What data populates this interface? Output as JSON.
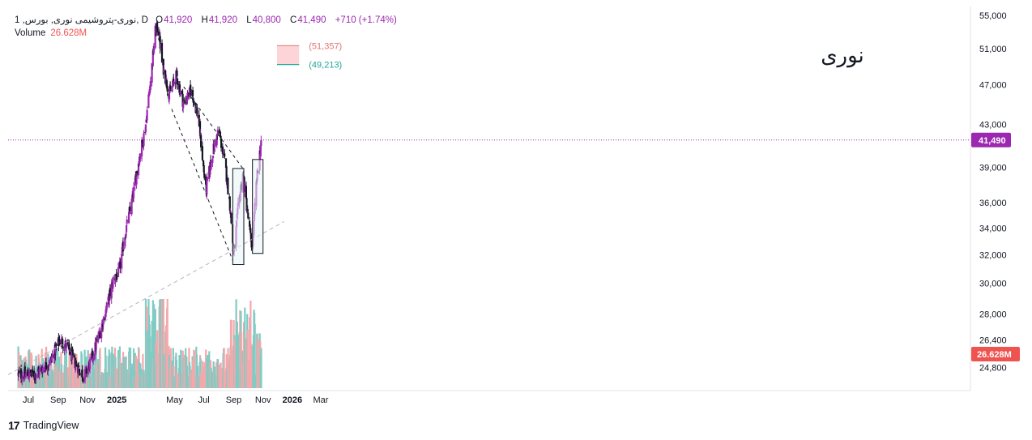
{
  "header": {
    "symbol": "1 ,نوری-پتروشیمی نوری, بورس, D",
    "open_label": "O",
    "open": "41,920",
    "high_label": "H",
    "high": "41,920",
    "low_label": "L",
    "low": "40,800",
    "close_label": "C",
    "close": "41,490",
    "change": "+710 (+1.74%)",
    "volume_label": "Volume",
    "volume": "26.628M"
  },
  "annotation": {
    "title": "نوری",
    "upper_level": "(51,357)",
    "lower_level": "(49,213)"
  },
  "colors": {
    "up": "#9c27b0",
    "down": "#131722",
    "vol_up": "#80cbc4",
    "vol_down": "#f4a8ab",
    "price_line": "#9c27b0",
    "upper_level": "#e57373",
    "lower_level": "#26a69a",
    "box_fill": "#e8f4f8"
  },
  "footer": {
    "brand": "TradingView"
  },
  "chart_data": {
    "type": "candlestick",
    "x_axis": {
      "ticks": [
        "Jul",
        "Sep",
        "Nov",
        "2025",
        "May",
        "Jul",
        "Sep",
        "Nov",
        "2026",
        "Mar"
      ],
      "bold_ticks": [
        "2025",
        "2026"
      ]
    },
    "y_axis": {
      "scale": "log",
      "range": [
        23800,
        55000
      ],
      "ticks": [
        24800,
        26400,
        28000,
        30000,
        32000,
        34000,
        36000,
        39000,
        43000,
        47000,
        51000,
        55000
      ],
      "tick_labels": [
        "24,800",
        "26,400",
        "28,000",
        "30,000",
        "32,000",
        "34,000",
        "36,000",
        "39,000",
        "43,000",
        "47,000",
        "51,000",
        "55,000"
      ]
    },
    "last_price": 41490,
    "last_price_label": "41,490",
    "last_volume_label": "26.628M",
    "trend_path": [
      [
        "2024-06-10",
        24400
      ],
      [
        "2024-07-15",
        24400
      ],
      [
        "2024-08-15",
        25100
      ],
      [
        "2024-09-05",
        26400
      ],
      [
        "2024-09-20",
        26000
      ],
      [
        "2024-10-05",
        25100
      ],
      [
        "2024-10-25",
        24300
      ],
      [
        "2024-11-10",
        25300
      ],
      [
        "2024-11-25",
        26700
      ],
      [
        "2024-12-10",
        28300
      ],
      [
        "2024-12-25",
        30300
      ],
      [
        "2025-01-05",
        30700
      ],
      [
        "2025-01-18",
        33500
      ],
      [
        "2025-02-01",
        36000
      ],
      [
        "2025-02-15",
        39500
      ],
      [
        "2025-03-01",
        42600
      ],
      [
        "2025-03-12",
        47500
      ],
      [
        "2025-03-22",
        53000
      ],
      [
        "2025-03-28",
        53600
      ],
      [
        "2025-04-05",
        49500
      ],
      [
        "2025-04-20",
        46000
      ],
      [
        "2025-05-05",
        48000
      ],
      [
        "2025-05-20",
        45000
      ],
      [
        "2025-06-05",
        46500
      ],
      [
        "2025-06-20",
        43500
      ],
      [
        "2025-07-05",
        37000
      ],
      [
        "2025-07-20",
        40500
      ],
      [
        "2025-08-01",
        42400
      ],
      [
        "2025-08-15",
        39000
      ],
      [
        "2025-08-25",
        35500
      ],
      [
        "2025-09-01",
        31900
      ],
      [
        "2025-09-10",
        35500
      ],
      [
        "2025-09-20",
        38500
      ],
      [
        "2025-10-05",
        33500
      ],
      [
        "2025-10-10",
        32500
      ],
      [
        "2025-10-18",
        37500
      ],
      [
        "2025-10-28",
        41490
      ]
    ],
    "annotations": {
      "channel_upper": [
        [
          "2025-05-20",
          46800
        ],
        [
          "2025-09-20",
          38900
        ]
      ],
      "channel_lower": [
        [
          "2025-04-25",
          44500
        ],
        [
          "2025-08-30",
          31600
        ]
      ],
      "long_trendline": [
        [
          "2024-05-20",
          24400
        ],
        [
          "2025-12-15",
          34500
        ]
      ],
      "box_1": {
        "x": [
          "2025-08-30",
          "2025-09-22"
        ],
        "y": [
          31300,
          38900
        ]
      },
      "box_2": {
        "x": [
          "2025-10-10",
          "2025-11-01"
        ],
        "y": [
          32100,
          39700
        ]
      },
      "level_zone": {
        "x": [
          "2025-11-30",
          "2026-01-15"
        ],
        "y": [
          49213,
          51357
        ]
      }
    }
  }
}
